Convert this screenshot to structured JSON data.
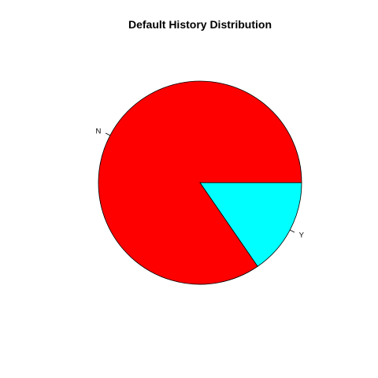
{
  "chart_data": {
    "type": "pie",
    "title": "Default History Distribution",
    "labels": [
      "N",
      "Y"
    ],
    "values": [
      84.6,
      15.4
    ],
    "value_unit": "percent",
    "colors": [
      "#FF0000",
      "#00FFFF"
    ],
    "start_angle_deg": 0,
    "direction": "counterclockwise"
  }
}
